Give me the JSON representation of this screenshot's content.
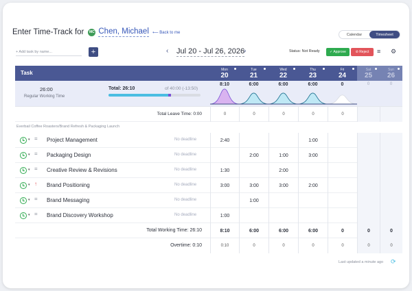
{
  "header": {
    "title": "Enter Time-Track for",
    "avatar_initials": "MC",
    "user_name": "Chen, Michael",
    "back_link": "Back to me",
    "views": [
      "Calendar",
      "Timesheet"
    ],
    "active_view": "Timesheet"
  },
  "toolbar": {
    "add_task_placeholder": "+ Add task by name...",
    "add_button": "+",
    "prev": "‹",
    "next": "›",
    "date_range": "Jul 20 - Jul 26, 2026",
    "status": "Status: Not Ready",
    "approve": "✓ Approve",
    "reject": "⊘ Reject",
    "menu_icon": "≡",
    "settings_icon": "⚙"
  },
  "columns": {
    "task_label": "Task",
    "days": [
      {
        "name": "Mon",
        "date": "20",
        "weekend": false
      },
      {
        "name": "Tue",
        "date": "21",
        "weekend": false
      },
      {
        "name": "Wed",
        "date": "22",
        "weekend": false
      },
      {
        "name": "Thu",
        "date": "23",
        "weekend": false
      },
      {
        "name": "Fri",
        "date": "24",
        "weekend": false
      },
      {
        "name": "Sat",
        "date": "25",
        "weekend": true
      },
      {
        "name": "Sun",
        "date": "26",
        "weekend": true
      }
    ]
  },
  "summary": {
    "regular_hours": "26:00",
    "regular_label": "Regular Working Time",
    "total": "Total: 26:10",
    "of_line": "of 40:00 (-13:50)",
    "progress_regular_fraction": 0.65,
    "progress_extra_fraction": 0.004,
    "day_values": [
      "8:10",
      "6:00",
      "6:00",
      "6:00",
      "0",
      "0",
      "0"
    ],
    "wave_levels": [
      1.0,
      0.73,
      0.73,
      0.73,
      0.6,
      0,
      0
    ]
  },
  "leave": {
    "label": "Total Leave Time: 0:00",
    "values": [
      "0",
      "0",
      "0",
      "0",
      "0",
      "",
      ""
    ]
  },
  "group": {
    "name": "Everbail Coffee Roasters/Brand Refresh & Packaging Launch"
  },
  "tasks": [
    {
      "name": "Project Management",
      "priority": "=",
      "deadline": "No deadline",
      "values": [
        "2:40",
        "",
        "",
        "1:00",
        "",
        "",
        ""
      ]
    },
    {
      "name": "Packaging Design",
      "priority": "=",
      "deadline": "No deadline",
      "values": [
        "",
        "2:00",
        "1:00",
        "3:00",
        "",
        "",
        ""
      ]
    },
    {
      "name": "Creative Review & Revisions",
      "priority": "=",
      "deadline": "No deadline",
      "values": [
        "1:30",
        "",
        "2:00",
        "",
        "",
        "",
        ""
      ]
    },
    {
      "name": "Brand Positioning",
      "priority": "↑",
      "deadline": "No deadline",
      "values": [
        "3:00",
        "3:00",
        "3:00",
        "2:00",
        "",
        "",
        ""
      ]
    },
    {
      "name": "Brand Messaging",
      "priority": "=",
      "deadline": "No deadline",
      "values": [
        "",
        "1:00",
        "",
        "",
        "",
        "",
        ""
      ]
    },
    {
      "name": "Brand Discovery Workshop",
      "priority": "=",
      "deadline": "No deadline",
      "values": [
        "1:00",
        "",
        "",
        "",
        "",
        "",
        ""
      ]
    }
  ],
  "totals": {
    "label": "Total Working Time: 26:10",
    "values": [
      "8:10",
      "6:00",
      "6:00",
      "6:00",
      "0",
      "0",
      "0"
    ]
  },
  "overtime": {
    "label": "Overtime: 0:10",
    "values": [
      "0:10",
      "0",
      "0",
      "0",
      "0",
      "0",
      "0"
    ]
  },
  "footer": {
    "last_updated": "Last updated a minute ago",
    "refresh_icon": "⟳"
  },
  "colors": {
    "header_bg": "#4a5894",
    "approve": "#2eaa4f",
    "reject": "#e2545a",
    "wave_mon": "#d9b3f0",
    "wave_other": "#bfe8f5"
  }
}
